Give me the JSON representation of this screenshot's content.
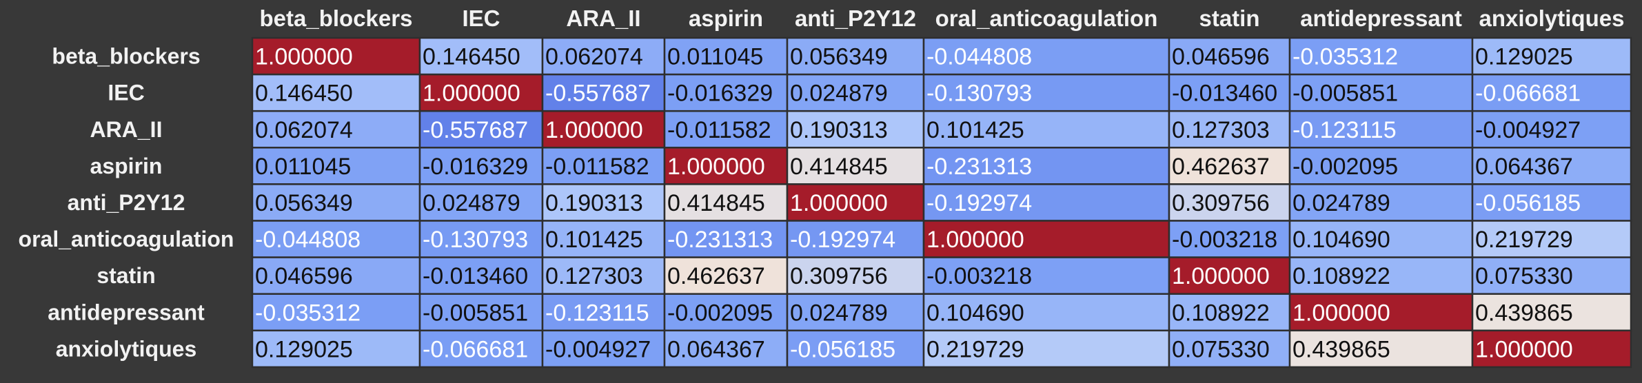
{
  "chart_data": {
    "type": "heatmap",
    "title": "",
    "xlabel": "",
    "ylabel": "",
    "grid": true,
    "colormap": "coolwarm",
    "vlim": [
      -1,
      1
    ],
    "columns": [
      "beta_blockers",
      "IEC",
      "ARA_II",
      "aspirin",
      "anti_P2Y12",
      "oral_anticoagulation",
      "statin",
      "antidepressant",
      "anxiolytiques"
    ],
    "rows": [
      "beta_blockers",
      "IEC",
      "ARA_II",
      "aspirin",
      "anti_P2Y12",
      "oral_anticoagulation",
      "statin",
      "antidepressant",
      "anxiolytiques"
    ],
    "values": [
      [
        1.0,
        0.14645,
        0.062074,
        0.011045,
        0.056349,
        -0.044808,
        0.046596,
        -0.035312,
        0.129025
      ],
      [
        0.14645,
        1.0,
        -0.557687,
        -0.016329,
        0.024879,
        -0.130793,
        -0.01346,
        -0.005851,
        -0.066681
      ],
      [
        0.062074,
        -0.557687,
        1.0,
        -0.011582,
        0.190313,
        0.101425,
        0.127303,
        -0.123115,
        -0.004927
      ],
      [
        0.011045,
        -0.016329,
        -0.011582,
        1.0,
        0.414845,
        -0.231313,
        0.462637,
        -0.002095,
        0.064367
      ],
      [
        0.056349,
        0.024879,
        0.190313,
        0.414845,
        1.0,
        -0.192974,
        0.309756,
        0.024789,
        -0.056185
      ],
      [
        -0.044808,
        -0.130793,
        0.101425,
        -0.231313,
        -0.192974,
        1.0,
        -0.003218,
        0.10469,
        0.219729
      ],
      [
        0.046596,
        -0.01346,
        0.127303,
        0.462637,
        0.309756,
        -0.003218,
        1.0,
        0.108922,
        0.07533
      ],
      [
        -0.035312,
        -0.005851,
        -0.123115,
        -0.002095,
        0.024789,
        0.10469,
        0.108922,
        1.0,
        0.439865
      ],
      [
        0.129025,
        -0.066681,
        -0.004927,
        0.064367,
        -0.056185,
        0.219729,
        0.07533,
        0.439865,
        1.0
      ]
    ],
    "cells": [
      [
        "1.000000",
        "0.146450",
        "0.062074",
        "0.011045",
        "0.056349",
        "-0.044808",
        "0.046596",
        "-0.035312",
        "0.129025"
      ],
      [
        "0.146450",
        "1.000000",
        "-0.557687",
        "-0.016329",
        "0.024879",
        "-0.130793",
        "-0.013460",
        "-0.005851",
        "-0.066681"
      ],
      [
        "0.062074",
        "-0.557687",
        "1.000000",
        "-0.011582",
        "0.190313",
        "0.101425",
        "0.127303",
        "-0.123115",
        "-0.004927"
      ],
      [
        "0.011045",
        "-0.016329",
        "-0.011582",
        "1.000000",
        "0.414845",
        "-0.231313",
        "0.462637",
        "-0.002095",
        "0.064367"
      ],
      [
        "0.056349",
        "0.024879",
        "0.190313",
        "0.414845",
        "1.000000",
        "-0.192974",
        "0.309756",
        "0.024789",
        "-0.056185"
      ],
      [
        "-0.044808",
        "-0.130793",
        "0.101425",
        "-0.231313",
        "-0.192974",
        "1.000000",
        "-0.003218",
        "0.104690",
        "0.219729"
      ],
      [
        "0.046596",
        "-0.013460",
        "0.127303",
        "0.462637",
        "0.309756",
        "-0.003218",
        "1.000000",
        "0.108922",
        "0.075330"
      ],
      [
        "-0.035312",
        "-0.005851",
        "-0.123115",
        "-0.002095",
        "0.024789",
        "0.104690",
        "0.108922",
        "1.000000",
        "0.439865"
      ],
      [
        "0.129025",
        "-0.066681",
        "-0.004927",
        "0.064367",
        "-0.056185",
        "0.219729",
        "0.075330",
        "0.439865",
        "1.000000"
      ]
    ]
  },
  "colors": {
    "background": "#383838",
    "header_text": "#f2f2f2",
    "cell_border": "#2e2e2e",
    "diagonal": "#a51c2a",
    "text_on_dark": "#ffffff",
    "text_on_light": "#111111"
  }
}
